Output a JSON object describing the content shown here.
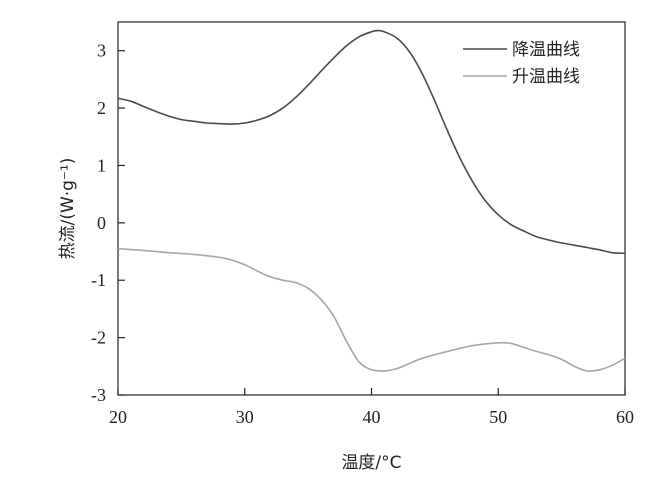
{
  "chart_data": {
    "type": "line",
    "xlabel": "温度/°C",
    "ylabel": "热流/(W·g⁻¹)",
    "xlim": [
      20,
      60
    ],
    "ylim": [
      -3,
      3.5
    ],
    "x_ticks": [
      20,
      30,
      40,
      50,
      60
    ],
    "y_ticks": [
      -3,
      -2,
      -1,
      0,
      1,
      2,
      3
    ],
    "x_tick_labels": [
      "20",
      "30",
      "40",
      "50",
      "60"
    ],
    "y_tick_labels": [
      "-3",
      "-2",
      "-1",
      "0",
      "1",
      "2",
      "3"
    ],
    "grid": false,
    "legend_position": "top-right",
    "series": [
      {
        "name": "降温曲线",
        "color": "#4a4a4a",
        "points": [
          [
            20,
            2.17
          ],
          [
            21,
            2.12
          ],
          [
            22,
            2.03
          ],
          [
            23,
            1.94
          ],
          [
            24,
            1.86
          ],
          [
            25,
            1.8
          ],
          [
            26,
            1.77
          ],
          [
            27,
            1.74
          ],
          [
            28,
            1.73
          ],
          [
            29,
            1.72
          ],
          [
            30,
            1.74
          ],
          [
            31,
            1.79
          ],
          [
            32,
            1.87
          ],
          [
            33,
            2.0
          ],
          [
            34,
            2.18
          ],
          [
            35,
            2.4
          ],
          [
            36,
            2.64
          ],
          [
            37,
            2.87
          ],
          [
            38,
            3.08
          ],
          [
            39,
            3.24
          ],
          [
            40,
            3.33
          ],
          [
            40.5,
            3.35
          ],
          [
            41,
            3.33
          ],
          [
            42,
            3.22
          ],
          [
            43,
            2.98
          ],
          [
            44,
            2.6
          ],
          [
            45,
            2.12
          ],
          [
            46,
            1.6
          ],
          [
            47,
            1.12
          ],
          [
            48,
            0.71
          ],
          [
            49,
            0.38
          ],
          [
            50,
            0.14
          ],
          [
            51,
            -0.03
          ],
          [
            52,
            -0.14
          ],
          [
            53,
            -0.24
          ],
          [
            54,
            -0.3
          ],
          [
            55,
            -0.35
          ],
          [
            56,
            -0.39
          ],
          [
            57,
            -0.43
          ],
          [
            58,
            -0.47
          ],
          [
            59,
            -0.52
          ],
          [
            60,
            -0.53
          ]
        ]
      },
      {
        "name": "升温曲线",
        "color": "#a6a6a6",
        "points": [
          [
            20,
            -0.45
          ],
          [
            22,
            -0.48
          ],
          [
            24,
            -0.52
          ],
          [
            26,
            -0.55
          ],
          [
            28,
            -0.6
          ],
          [
            29,
            -0.65
          ],
          [
            30,
            -0.73
          ],
          [
            31,
            -0.84
          ],
          [
            32,
            -0.94
          ],
          [
            33,
            -1.0
          ],
          [
            34,
            -1.04
          ],
          [
            35,
            -1.14
          ],
          [
            36,
            -1.33
          ],
          [
            37,
            -1.62
          ],
          [
            38,
            -2.05
          ],
          [
            39,
            -2.42
          ],
          [
            40,
            -2.56
          ],
          [
            41,
            -2.58
          ],
          [
            42,
            -2.54
          ],
          [
            43,
            -2.45
          ],
          [
            44,
            -2.36
          ],
          [
            46,
            -2.24
          ],
          [
            48,
            -2.14
          ],
          [
            50,
            -2.09
          ],
          [
            51,
            -2.1
          ],
          [
            52,
            -2.17
          ],
          [
            53,
            -2.24
          ],
          [
            54,
            -2.3
          ],
          [
            55,
            -2.38
          ],
          [
            56,
            -2.5
          ],
          [
            57,
            -2.58
          ],
          [
            58,
            -2.56
          ],
          [
            59,
            -2.48
          ],
          [
            60,
            -2.36
          ]
        ]
      }
    ]
  }
}
